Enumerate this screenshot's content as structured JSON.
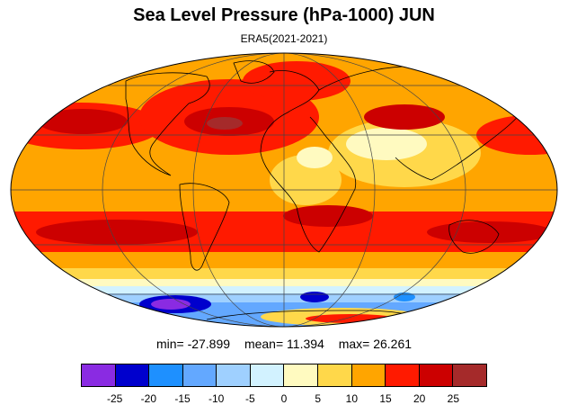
{
  "title": "Sea Level Pressure (hPa-1000) JUN",
  "subtitle": "ERA5(2021-2021)",
  "stats": {
    "min_label": "min=",
    "min": "-27.899",
    "mean_label": "mean=",
    "mean": "11.394",
    "max_label": "max=",
    "max": "26.261"
  },
  "colorbar": {
    "colors": [
      "#8a2be2",
      "#0000cd",
      "#1e90ff",
      "#63a8ff",
      "#9fd0ff",
      "#d2f2ff",
      "#fffac0",
      "#ffd84a",
      "#ffa500",
      "#ff1a00",
      "#cc0000",
      "#a52a2a"
    ],
    "ticks": [
      "-25",
      "-20",
      "-15",
      "-10",
      "-5",
      "0",
      "5",
      "10",
      "15",
      "20",
      "25"
    ]
  },
  "colors": {
    "ocean_base": "#ffa500",
    "high": "#ff1a00",
    "very_high": "#cc0000",
    "low": "#63a8ff",
    "very_low": "#0000cd",
    "land": "#ffd84a"
  }
}
